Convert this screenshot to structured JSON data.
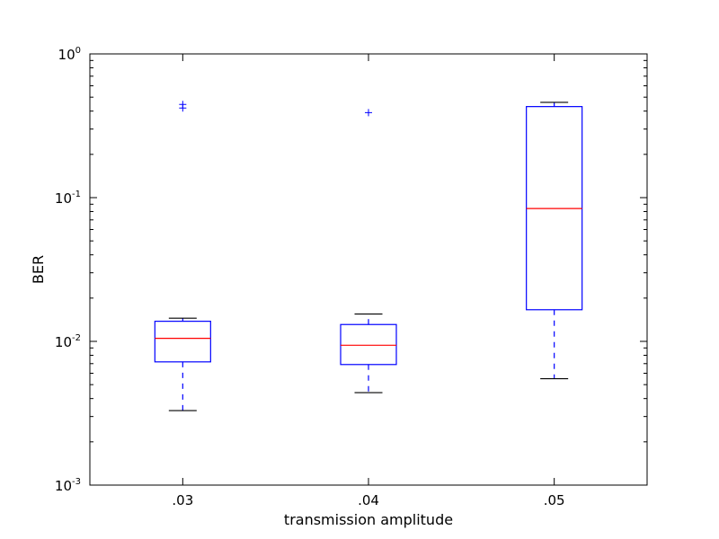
{
  "chart_data": {
    "type": "box",
    "title": "",
    "xlabel": "transmission amplitude",
    "ylabel": "BER",
    "yscale": "log",
    "ylim": [
      0.001,
      1
    ],
    "yticks": [
      {
        "value": 0.001,
        "base": "10",
        "exp": "-3"
      },
      {
        "value": 0.01,
        "base": "10",
        "exp": "-2"
      },
      {
        "value": 0.1,
        "base": "10",
        "exp": "-1"
      },
      {
        "value": 1,
        "base": "10",
        "exp": "0"
      }
    ],
    "categories": [
      ".03",
      ".04",
      ".05"
    ],
    "boxes": [
      {
        "category": ".03",
        "whisker_low": 0.0033,
        "q1": 0.0072,
        "median": 0.0105,
        "q3": 0.0138,
        "whisker_high": 0.0145,
        "outliers": [
          0.42,
          0.445
        ]
      },
      {
        "category": ".04",
        "whisker_low": 0.0044,
        "q1": 0.0069,
        "median": 0.0094,
        "q3": 0.0131,
        "whisker_high": 0.0155,
        "outliers": [
          0.39
        ]
      },
      {
        "category": ".05",
        "whisker_low": 0.0055,
        "q1": 0.0166,
        "median": 0.084,
        "q3": 0.43,
        "whisker_high": 0.46,
        "outliers": []
      }
    ],
    "grid": false,
    "legend": "none",
    "colors": {
      "box": "#0000ff",
      "median": "#ff0000",
      "cap": "#000000",
      "outlier": "#0000ff",
      "axes": "#000000"
    }
  }
}
